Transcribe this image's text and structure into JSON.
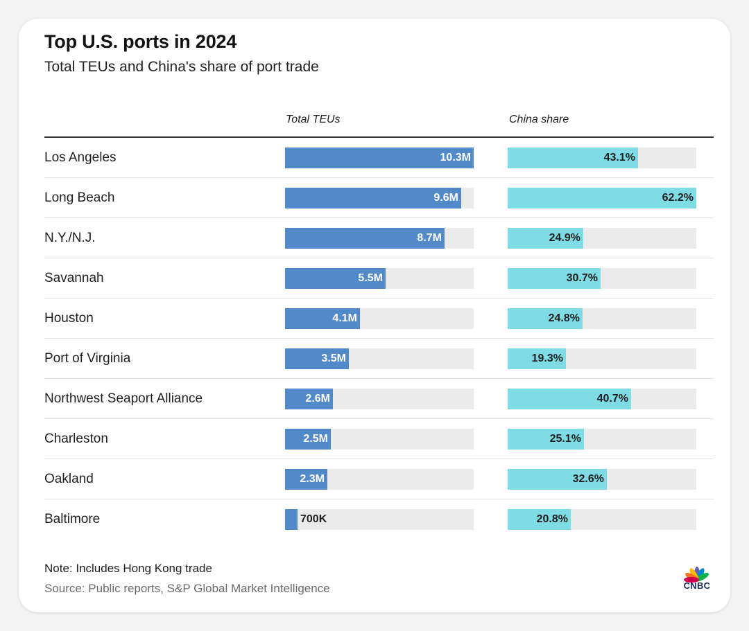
{
  "header": {
    "title": "Top U.S. ports in 2024",
    "subtitle": "Total TEUs and China's share of port trade"
  },
  "columns": {
    "teu_label": "Total TEUs",
    "china_label": "China share"
  },
  "colors": {
    "teu_bar": "#5289c9",
    "china_bar": "#7fdce5",
    "track": "#ebebeb"
  },
  "chart_data": {
    "type": "bar",
    "orientation": "horizontal",
    "categories": [
      "Los Angeles",
      "Long Beach",
      "N.Y./N.J.",
      "Savannah",
      "Houston",
      "Port of Virginia",
      "Northwest Seaport Alliance",
      "Charleston",
      "Oakland",
      "Baltimore"
    ],
    "series": [
      {
        "name": "Total TEUs",
        "unit": "TEUs",
        "values": [
          10300000,
          9600000,
          8700000,
          5500000,
          4100000,
          3500000,
          2600000,
          2500000,
          2300000,
          700000
        ],
        "labels": [
          "10.3M",
          "9.6M",
          "8.7M",
          "5.5M",
          "4.1M",
          "3.5M",
          "2.6M",
          "2.5M",
          "2.3M",
          "700K"
        ],
        "xlim": [
          0,
          10300000
        ]
      },
      {
        "name": "China share",
        "unit": "%",
        "values": [
          43.1,
          62.2,
          24.9,
          30.7,
          24.8,
          19.3,
          40.7,
          25.1,
          32.6,
          20.8
        ],
        "labels": [
          "43.1%",
          "62.2%",
          "24.9%",
          "30.7%",
          "24.8%",
          "19.3%",
          "40.7%",
          "25.1%",
          "32.6%",
          "20.8%"
        ],
        "xlim": [
          0,
          62.2
        ]
      }
    ]
  },
  "footer": {
    "note": "Note: Includes Hong Kong trade",
    "source": "Source: Public reports, S&P Global Market Intelligence",
    "logo_text": "CNBC"
  }
}
